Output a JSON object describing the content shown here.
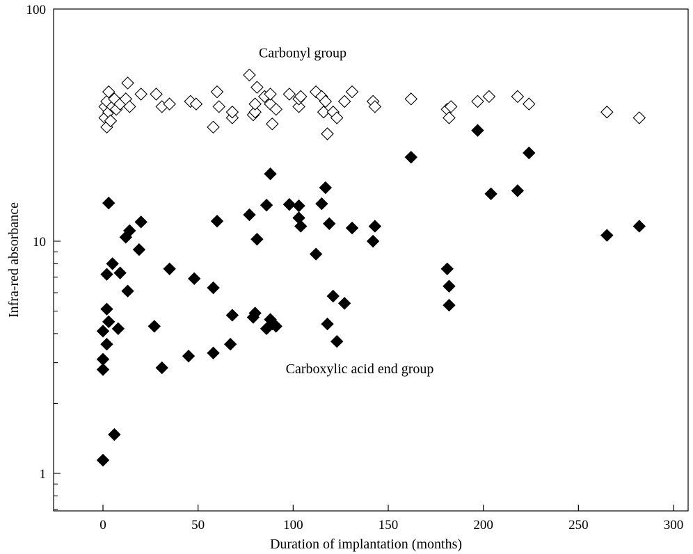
{
  "chart_data": {
    "type": "scatter",
    "title": "",
    "xlabel": "Duration of implantation (months)",
    "ylabel": "Infra-red absorbance",
    "xlim": [
      -25,
      300
    ],
    "ylim": [
      0.64,
      100
    ],
    "yscale": "log",
    "grid": false,
    "legend": "none",
    "xticks": [
      0,
      50,
      100,
      150,
      200,
      250,
      300
    ],
    "yticks": [
      1,
      10,
      100
    ],
    "xtick_labels": [
      "0",
      "50",
      "100",
      "150",
      "200",
      "250",
      "300"
    ],
    "ytick_labels": [
      "1",
      "10",
      "100"
    ],
    "annotations": [
      {
        "text": "Carbonyl group",
        "x": 105,
        "y": 62
      },
      {
        "text": "Carboxylic acid end group",
        "x": 135,
        "y": 2.7
      }
    ],
    "series": [
      {
        "marker": "open-diamond",
        "color": "#000000",
        "points": [
          [
            1,
            38
          ],
          [
            1,
            34
          ],
          [
            2,
            31
          ],
          [
            2,
            40
          ],
          [
            3,
            44
          ],
          [
            3,
            36
          ],
          [
            4,
            33
          ],
          [
            5,
            38
          ],
          [
            6,
            41
          ],
          [
            7,
            37
          ],
          [
            9,
            39
          ],
          [
            12,
            41
          ],
          [
            13,
            48
          ],
          [
            14,
            38
          ],
          [
            20,
            43
          ],
          [
            28,
            43
          ],
          [
            31,
            38
          ],
          [
            35,
            39
          ],
          [
            46,
            40
          ],
          [
            49,
            39
          ],
          [
            58,
            31
          ],
          [
            60,
            44
          ],
          [
            61,
            38
          ],
          [
            68,
            34
          ],
          [
            68,
            36
          ],
          [
            77,
            52
          ],
          [
            79,
            35
          ],
          [
            80,
            36
          ],
          [
            80,
            39
          ],
          [
            81,
            46
          ],
          [
            85,
            42
          ],
          [
            88,
            39
          ],
          [
            88,
            43
          ],
          [
            89,
            32
          ],
          [
            91,
            37
          ],
          [
            98,
            43
          ],
          [
            103,
            38
          ],
          [
            103,
            41
          ],
          [
            104,
            42
          ],
          [
            112,
            44
          ],
          [
            115,
            42
          ],
          [
            116,
            36
          ],
          [
            117,
            40
          ],
          [
            118,
            29
          ],
          [
            121,
            36
          ],
          [
            123,
            34
          ],
          [
            127,
            40
          ],
          [
            131,
            44
          ],
          [
            142,
            40
          ],
          [
            143,
            38
          ],
          [
            162,
            41
          ],
          [
            181,
            37
          ],
          [
            182,
            34
          ],
          [
            183,
            38
          ],
          [
            197,
            40
          ],
          [
            203,
            42
          ],
          [
            218,
            42
          ],
          [
            224,
            39
          ],
          [
            265,
            36
          ],
          [
            282,
            34
          ]
        ]
      },
      {
        "marker": "filled-diamond",
        "color": "#000000",
        "points": [
          [
            0,
            1.14
          ],
          [
            0,
            2.8
          ],
          [
            0,
            3.1
          ],
          [
            0,
            4.1
          ],
          [
            2,
            3.6
          ],
          [
            2,
            5.1
          ],
          [
            2,
            7.2
          ],
          [
            3,
            14.6
          ],
          [
            3,
            4.5
          ],
          [
            5,
            8.0
          ],
          [
            6,
            1.47
          ],
          [
            8,
            4.2
          ],
          [
            9,
            7.3
          ],
          [
            12,
            10.4
          ],
          [
            13,
            6.1
          ],
          [
            14,
            11.1
          ],
          [
            19,
            9.2
          ],
          [
            20,
            12.1
          ],
          [
            27,
            4.3
          ],
          [
            31,
            2.85
          ],
          [
            35,
            7.6
          ],
          [
            45,
            3.2
          ],
          [
            48,
            6.9
          ],
          [
            58,
            3.3
          ],
          [
            58,
            6.3
          ],
          [
            60,
            12.2
          ],
          [
            67,
            3.6
          ],
          [
            68,
            4.8
          ],
          [
            77,
            13.0
          ],
          [
            79,
            4.7
          ],
          [
            80,
            4.9
          ],
          [
            81,
            10.2
          ],
          [
            86,
            14.3
          ],
          [
            86,
            4.2
          ],
          [
            88,
            19.5
          ],
          [
            88,
            4.6
          ],
          [
            89,
            4.4
          ],
          [
            91,
            4.3
          ],
          [
            98,
            14.4
          ],
          [
            103,
            14.2
          ],
          [
            103,
            12.6
          ],
          [
            104,
            11.6
          ],
          [
            112,
            8.8
          ],
          [
            115,
            14.5
          ],
          [
            117,
            17.0
          ],
          [
            118,
            4.4
          ],
          [
            119,
            11.9
          ],
          [
            121,
            5.8
          ],
          [
            123,
            3.7
          ],
          [
            127,
            5.4
          ],
          [
            131,
            11.4
          ],
          [
            142,
            10.0
          ],
          [
            143,
            11.6
          ],
          [
            162,
            23.0
          ],
          [
            181,
            7.6
          ],
          [
            182,
            6.4
          ],
          [
            182,
            5.3
          ],
          [
            197,
            30.0
          ],
          [
            204,
            16.0
          ],
          [
            218,
            16.5
          ],
          [
            224,
            24.0
          ],
          [
            265,
            10.6
          ],
          [
            282,
            11.6
          ]
        ]
      }
    ]
  }
}
